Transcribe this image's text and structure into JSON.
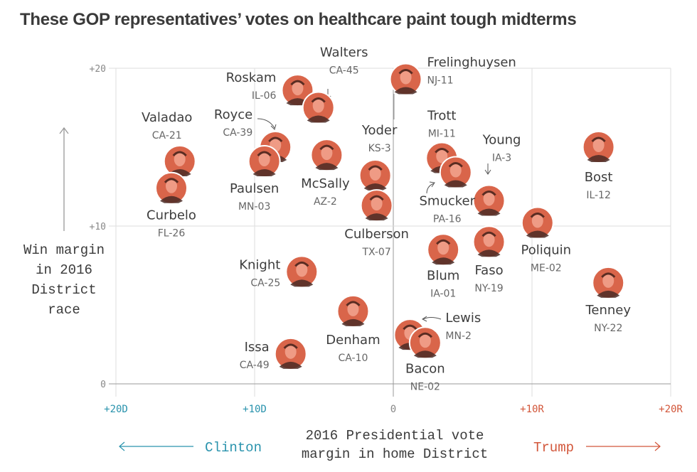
{
  "title": "These GOP representatives’ votes on healthcare paint tough midterms",
  "colors": {
    "dem": "#2a93ad",
    "rep": "#d2563a",
    "photo": "#d9654a",
    "grid": "#dddddd",
    "axis": "#999999",
    "text": "#3d3d3d",
    "subtext": "#666666"
  },
  "chart_data": {
    "type": "scatter",
    "title": "These GOP representatives’ votes on healthcare paint tough midterms",
    "xlabel": "2016 Presidential vote margin in home District",
    "ylabel": "Win margin in 2016 District race",
    "ylabel_lines": [
      "Win margin",
      "in 2016",
      "District",
      "race"
    ],
    "xlabel_lines": [
      "2016 Presidential vote",
      "margin in home District"
    ],
    "xlim": [
      -20,
      20
    ],
    "ylim": [
      0,
      20
    ],
    "x_note": "negative = Clinton margin (D), positive = Trump margin (R)",
    "x_ticks": [
      {
        "value": -20,
        "label": "+20D",
        "party": "dem"
      },
      {
        "value": -10,
        "label": "+10D",
        "party": "dem"
      },
      {
        "value": 0,
        "label": "0",
        "party": "neutral"
      },
      {
        "value": 10,
        "label": "+10R",
        "party": "rep"
      },
      {
        "value": 20,
        "label": "+20R",
        "party": "rep"
      }
    ],
    "y_ticks": [
      {
        "value": 0,
        "label": "0"
      },
      {
        "value": 10,
        "label": "+10"
      },
      {
        "value": 20,
        "label": "+20"
      }
    ],
    "grid": true,
    "left_direction_label": "Clinton",
    "right_direction_label": "Trump",
    "points": [
      {
        "name": "Roskam",
        "district": "IL-06",
        "x": -6.9,
        "y": 18.6
      },
      {
        "name": "Walters",
        "district": "CA-45",
        "x": -5.4,
        "y": 17.5
      },
      {
        "name": "Frelinghuysen",
        "district": "NJ-11",
        "x": 0.9,
        "y": 19.3
      },
      {
        "name": "Valadao",
        "district": "CA-21",
        "x": -15.4,
        "y": 14.1
      },
      {
        "name": "Curbelo",
        "district": "FL-26",
        "x": -16.0,
        "y": 12.4
      },
      {
        "name": "Royce",
        "district": "CA-39",
        "x": -8.5,
        "y": 15.0
      },
      {
        "name": "Paulsen",
        "district": "MN-03",
        "x": -9.3,
        "y": 14.1
      },
      {
        "name": "McSally",
        "district": "AZ-2",
        "x": -4.8,
        "y": 14.5
      },
      {
        "name": "Yoder",
        "district": "KS-3",
        "x": -1.3,
        "y": 13.2
      },
      {
        "name": "Culberson",
        "district": "TX-07",
        "x": -1.2,
        "y": 11.3
      },
      {
        "name": "Trott",
        "district": "MI-11",
        "x": 3.5,
        "y": 14.3
      },
      {
        "name": "Smucker",
        "district": "PA-16",
        "x": 4.5,
        "y": 13.4
      },
      {
        "name": "Young",
        "district": "IA-3",
        "x": 6.9,
        "y": 11.6
      },
      {
        "name": "Bost",
        "district": "IL-12",
        "x": 14.8,
        "y": 15.0
      },
      {
        "name": "Poliquin",
        "district": "ME-02",
        "x": 10.4,
        "y": 10.2
      },
      {
        "name": "Blum",
        "district": "IA-01",
        "x": 3.6,
        "y": 8.5
      },
      {
        "name": "Faso",
        "district": "NY-19",
        "x": 6.9,
        "y": 9.0
      },
      {
        "name": "Knight",
        "district": "CA-25",
        "x": -6.6,
        "y": 7.1
      },
      {
        "name": "Denham",
        "district": "CA-10",
        "x": -2.9,
        "y": 4.6
      },
      {
        "name": "Lewis",
        "district": "MN-2",
        "x": 1.2,
        "y": 3.1
      },
      {
        "name": "Bacon",
        "district": "NE-02",
        "x": 2.3,
        "y": 2.6
      },
      {
        "name": "Issa",
        "district": "CA-49",
        "x": -7.4,
        "y": 1.9
      },
      {
        "name": "Tenney",
        "district": "NY-22",
        "x": 15.5,
        "y": 6.4
      }
    ]
  }
}
